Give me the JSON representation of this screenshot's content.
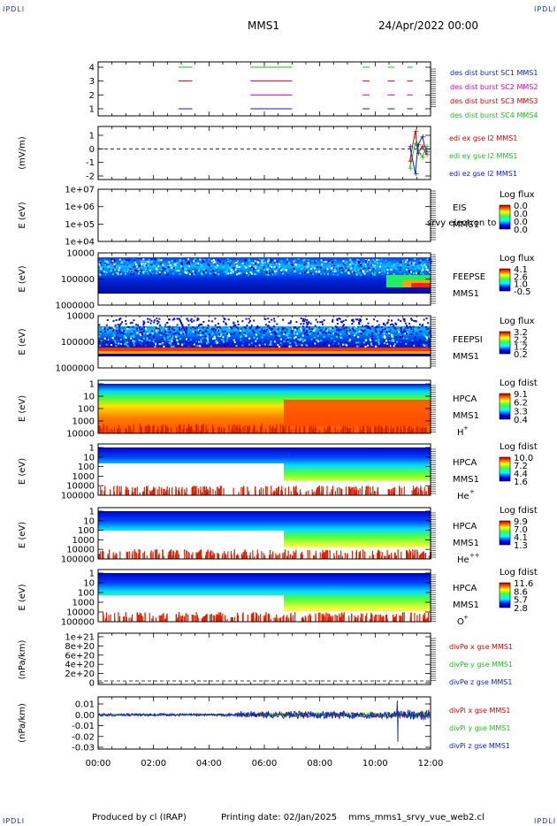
{
  "header": {
    "corner_tl": "IPDLI",
    "corner_tr": "IPDLI",
    "corner_bl": "IPDLI",
    "corner_br": "IPDLI",
    "spacecraft": "MMS1",
    "date": "24/Apr/2022 00:00"
  },
  "footer": {
    "produced_by": "Produced by cl (IRAP)",
    "printing_date": "Printing date: 02/Jan/2025",
    "filename": "mms_mms1_srvy_vue_web2.cl"
  },
  "colors": {
    "blue": "#0a1fc8",
    "red": "#d40000",
    "green": "#18c018",
    "magenta": "#d000d0"
  },
  "chart_data": [
    {
      "id": "burst",
      "type": "line",
      "title": "",
      "ylabel": "",
      "ylim": [
        0.5,
        4.5
      ],
      "yticks": [
        "1",
        "2",
        "3",
        "4"
      ],
      "xlim": [
        "00:00",
        "12:00"
      ],
      "series": [
        {
          "name": "des dist burst SC1 MMS1",
          "level": 1,
          "color": "#0a1fc8",
          "segments_h": [
            [
              2.9,
              3.4
            ],
            [
              5.5,
              7.0
            ],
            [
              9.55,
              9.8
            ],
            [
              10.45,
              10.7
            ],
            [
              11.15,
              11.35
            ]
          ]
        },
        {
          "name": "des dist burst SC2 MMS2",
          "level": 2,
          "color": "#d000d0",
          "segments_h": [
            [
              5.5,
              7.0
            ],
            [
              9.55,
              9.8
            ],
            [
              10.45,
              10.7
            ],
            [
              11.15,
              11.35
            ]
          ]
        },
        {
          "name": "des dist burst SC3 MMS3",
          "level": 3,
          "color": "#d40000",
          "segments_h": [
            [
              2.9,
              3.4
            ],
            [
              5.5,
              7.0
            ],
            [
              9.55,
              9.8
            ],
            [
              10.45,
              10.7
            ],
            [
              11.15,
              11.35
            ]
          ]
        },
        {
          "name": "des dist burst SC4 MMS4",
          "level": 4,
          "color": "#18c018",
          "segments_h": [
            [
              2.9,
              3.4
            ],
            [
              5.5,
              7.0
            ],
            [
              9.55,
              9.8
            ],
            [
              10.45,
              10.7
            ],
            [
              11.15,
              11.35
            ]
          ]
        }
      ]
    },
    {
      "id": "edi",
      "type": "line",
      "ylabel": "(mV/m)",
      "ylim": [
        -2,
        1.5
      ],
      "yticks": [
        "-2",
        "-1",
        "0",
        "1"
      ],
      "series": [
        {
          "name": "edi ex gse l2 MMS1",
          "color": "#d40000",
          "points": [
            [
              11.25,
              -0.9
            ],
            [
              11.45,
              1.3
            ],
            [
              11.55,
              -0.3
            ],
            [
              11.7,
              0.2
            ],
            [
              11.85,
              -0.4
            ]
          ]
        },
        {
          "name": "edi ey gse l2 MMS1",
          "color": "#18c018",
          "points": [
            [
              11.25,
              -1.4
            ],
            [
              11.45,
              0.4
            ],
            [
              11.55,
              -0.1
            ],
            [
              11.7,
              -0.6
            ],
            [
              11.85,
              0.2
            ]
          ]
        },
        {
          "name": "edi ez gse l2 MMS1",
          "color": "#0a1fc8",
          "points": [
            [
              11.25,
              0.2
            ],
            [
              11.45,
              -1.8
            ],
            [
              11.55,
              0.3
            ],
            [
              11.7,
              0.9
            ],
            [
              11.85,
              -0.2
            ]
          ]
        }
      ]
    },
    {
      "id": "eis",
      "type": "heatmap",
      "ylabel": "E (eV)",
      "yticks": [
        "1e+04",
        "1e+05",
        "1e+06",
        "1e+07"
      ],
      "instrument": "EIS",
      "overlay_text": "srvy electron to",
      "spacecraft": "MMS1",
      "colorbar_title": "Log flux",
      "colorbar_ticks": [
        "0.0",
        "0.0",
        "0.0",
        "0.0"
      ]
    },
    {
      "id": "feepse",
      "type": "heatmap",
      "ylabel": "E (eV)",
      "yticks": [
        "1000000",
        "100000",
        "10000"
      ],
      "instrument": "FEEPSE",
      "spacecraft": "MMS1",
      "colorbar_title": "Log flux",
      "colorbar_ticks": [
        "4.1",
        "2.6",
        "1.0",
        "-0.5"
      ]
    },
    {
      "id": "feepsi",
      "type": "heatmap",
      "ylabel": "E (eV)",
      "yticks": [
        "1000000",
        "100000",
        "10000"
      ],
      "instrument": "FEEPSI",
      "spacecraft": "MMS1",
      "colorbar_title": "Log flux",
      "colorbar_ticks": [
        "3.2",
        "2.2",
        "1.2",
        "0.2"
      ]
    },
    {
      "id": "hpca_h",
      "type": "heatmap",
      "ylabel": "E (eV)",
      "yticks": [
        "10000",
        "1000",
        "100",
        "10",
        "1"
      ],
      "instrument": "HPCA",
      "spacecraft": "MMS1",
      "species": "H",
      "species_sup": "+",
      "colorbar_title": "Log fdist",
      "colorbar_ticks": [
        "9.1",
        "6.2",
        "3.3",
        "0.4"
      ]
    },
    {
      "id": "hpca_he",
      "type": "heatmap",
      "ylabel": "E (eV)",
      "yticks": [
        "100000",
        "10000",
        "1000",
        "100",
        "10",
        "1"
      ],
      "instrument": "HPCA",
      "spacecraft": "MMS1",
      "species": "He",
      "species_sup": "+",
      "colorbar_title": "Log fdist",
      "colorbar_ticks": [
        "10.0",
        "7.2",
        "4.4",
        "1.6"
      ]
    },
    {
      "id": "hpca_he2",
      "type": "heatmap",
      "ylabel": "E (eV)",
      "yticks": [
        "100000",
        "10000",
        "1000",
        "100",
        "10",
        "1"
      ],
      "instrument": "HPCA",
      "spacecraft": "MMS1",
      "species": "He",
      "species_sup": "++",
      "colorbar_title": "Log fdist",
      "colorbar_ticks": [
        "9.9",
        "7.0",
        "4.1",
        "1.3"
      ]
    },
    {
      "id": "hpca_o",
      "type": "heatmap",
      "ylabel": "E (eV)",
      "yticks": [
        "100000",
        "10000",
        "1000",
        "100",
        "10",
        "1"
      ],
      "instrument": "HPCA",
      "spacecraft": "MMS1",
      "species": "O",
      "species_sup": "+",
      "colorbar_title": "Log fdist",
      "colorbar_ticks": [
        "11.6",
        "8.6",
        "5.7",
        "2.8"
      ]
    },
    {
      "id": "divpe",
      "type": "line",
      "ylabel": "(nPa/km)",
      "yticks": [
        "0",
        "2e+20",
        "4e+20",
        "6e+20",
        "8e+20",
        "1e+21"
      ],
      "series": [
        {
          "name": "divPe x gse MMS1",
          "color": "#d40000"
        },
        {
          "name": "divPe y gse MMS1",
          "color": "#18c018"
        },
        {
          "name": "divPe z gse MMS1",
          "color": "#0a1fc8"
        }
      ]
    },
    {
      "id": "divpi",
      "type": "line",
      "ylabel": "(nPa/km)",
      "ylim": [
        -0.03,
        0.015
      ],
      "yticks": [
        "-0.03",
        "-0.02",
        "-0.01",
        "0.00",
        "0.01"
      ],
      "xlim": [
        "00:00",
        "12:00"
      ],
      "xticks": [
        "00:00",
        "02:00",
        "04:00",
        "06:00",
        "08:00",
        "10:00",
        "12:00"
      ],
      "series": [
        {
          "name": "divPi x gse MMS1",
          "color": "#d40000"
        },
        {
          "name": "divPi y gse MMS1",
          "color": "#18c018"
        },
        {
          "name": "divPi z gse MMS1",
          "color": "#0a1fc8"
        }
      ]
    }
  ]
}
